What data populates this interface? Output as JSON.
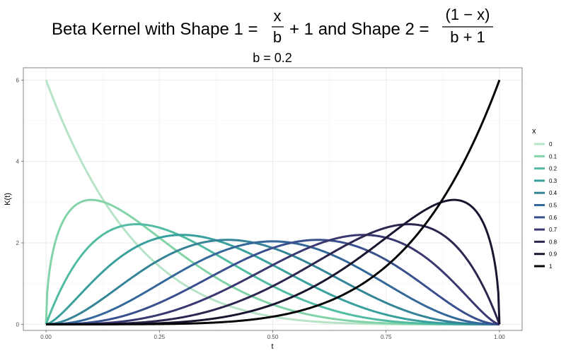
{
  "chart_data": {
    "type": "line",
    "title": {
      "prefix": "Beta Kernel with Shape 1 =",
      "frac1_num": "x",
      "frac1_den": "b",
      "mid": "+ 1 and Shape 2 =",
      "frac2_num": "(1 − x)",
      "frac2_den": "b + 1"
    },
    "subtitle": "b = 0.2",
    "xlabel": "t",
    "ylabel": "K(t)",
    "xlim": [
      0,
      1
    ],
    "ylim": [
      -0.15,
      6.3
    ],
    "x_ticks": [
      0,
      0.25,
      0.5,
      0.75,
      1
    ],
    "x_tick_labels": [
      "0.00",
      "0.25",
      "0.50",
      "0.75",
      "1.00"
    ],
    "y_ticks": [
      0,
      2,
      4,
      6
    ],
    "y_tick_labels": [
      "0",
      "2",
      "4",
      "6"
    ],
    "grid": true,
    "legend_title": "x",
    "legend_position": "right",
    "b": 0.2,
    "kernel": "beta density with shape1 = x/b + 1, shape2 = (1 - x)/b + 1",
    "series": [
      {
        "name": "0",
        "x_param": 0.0,
        "color": "#b7e4c7"
      },
      {
        "name": "0.1",
        "x_param": 0.1,
        "color": "#82d4a8"
      },
      {
        "name": "0.2",
        "x_param": 0.2,
        "color": "#52bca3"
      },
      {
        "name": "0.3",
        "x_param": 0.3,
        "color": "#3aa09d"
      },
      {
        "name": "0.4",
        "x_param": 0.4,
        "color": "#348497"
      },
      {
        "name": "0.5",
        "x_param": 0.5,
        "color": "#35689a"
      },
      {
        "name": "0.6",
        "x_param": 0.6,
        "color": "#3a4f8e"
      },
      {
        "name": "0.7",
        "x_param": 0.7,
        "color": "#3a3870"
      },
      {
        "name": "0.8",
        "x_param": 0.8,
        "color": "#2d2650"
      },
      {
        "name": "0.9",
        "x_param": 0.9,
        "color": "#1b1530"
      },
      {
        "name": "1",
        "x_param": 1.0,
        "color": "#060508"
      }
    ]
  }
}
